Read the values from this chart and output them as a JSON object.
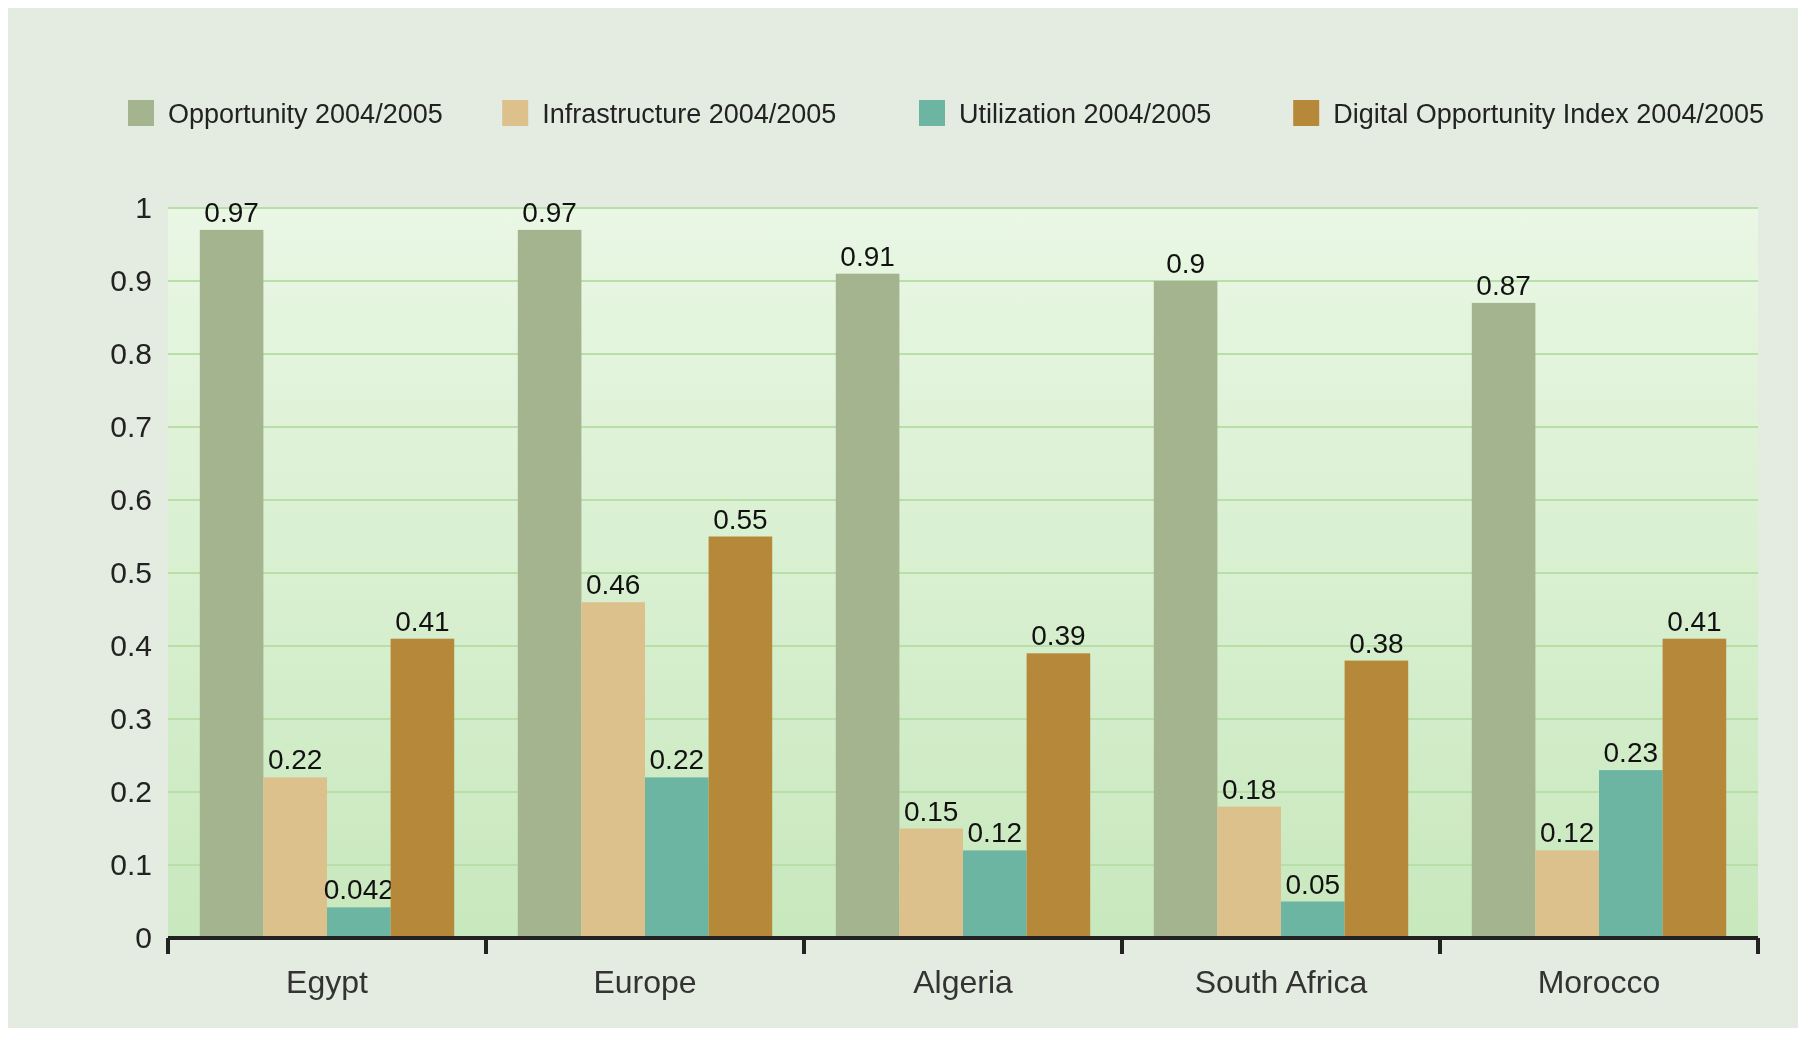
{
  "chart_data": {
    "type": "bar",
    "categories": [
      "Egypt",
      "Europe",
      "Algeria",
      "South Africa",
      "Morocco"
    ],
    "series": [
      {
        "name": "Opportunity 2004/2005",
        "color": "#a4b48f",
        "values": [
          0.97,
          0.97,
          0.91,
          0.9,
          0.87
        ]
      },
      {
        "name": "Infrastructure 2004/2005",
        "color": "#dcc18c",
        "values": [
          0.22,
          0.46,
          0.15,
          0.18,
          0.12
        ]
      },
      {
        "name": "Utilization 2004/2005",
        "color": "#6cb5a2",
        "values": [
          0.042,
          0.22,
          0.12,
          0.05,
          0.23
        ]
      },
      {
        "name": "Digital Opportunity Index 2004/2005",
        "color": "#b6893a",
        "values": [
          0.41,
          0.55,
          0.39,
          0.38,
          0.41
        ]
      }
    ],
    "ylim": [
      0,
      1
    ],
    "yticks": [
      0,
      0.1,
      0.2,
      0.3,
      0.4,
      0.5,
      0.6,
      0.7,
      0.8,
      0.9,
      1
    ],
    "grid": "y",
    "legend": "top",
    "data_labels": true
  }
}
